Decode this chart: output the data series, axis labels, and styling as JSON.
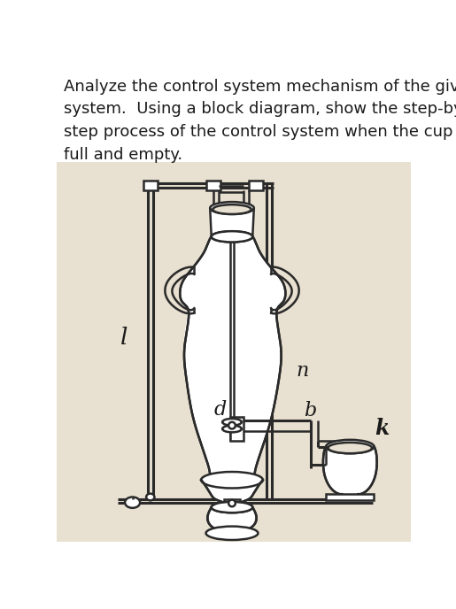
{
  "title_text": "Analyze the control system mechanism of the given\nsystem.  Using a block diagram, show the step-by-\nstep process of the control system when the cup is\nfull and empty.",
  "bg_color": "#e8e0d0",
  "text_color": "#1a1a1a",
  "draw_color": "#2a2a2a",
  "label_l": "l",
  "label_n": "n",
  "label_d": "d",
  "label_b": "b",
  "label_k": "k",
  "title_fontsize": 13.0,
  "label_fontsize": 16
}
